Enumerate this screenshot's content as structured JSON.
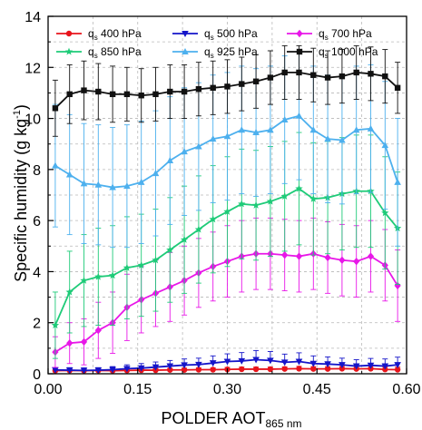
{
  "chart_data": {
    "type": "line",
    "xlabel_main": "POLDER AOT",
    "xlabel_sub": "865 nm",
    "ylabel_main": "Specific humidity (g kg",
    "ylabel_sup": "-1",
    "ylabel_close": ")",
    "xlim": [
      0,
      0.6
    ],
    "ylim": [
      0,
      14
    ],
    "xticks": [
      "0.00",
      "0.15",
      "0.30",
      "0.45",
      "0.60"
    ],
    "yticks": [
      "0",
      "2",
      "4",
      "6",
      "8",
      "10",
      "12",
      "14"
    ],
    "grid": true,
    "legend_position": "top",
    "x": [
      0.012,
      0.036,
      0.06,
      0.084,
      0.108,
      0.132,
      0.156,
      0.18,
      0.204,
      0.228,
      0.252,
      0.276,
      0.3,
      0.324,
      0.348,
      0.372,
      0.396,
      0.42,
      0.444,
      0.468,
      0.492,
      0.516,
      0.54,
      0.564,
      0.585
    ],
    "series": [
      {
        "name_main": "q",
        "name_sub": "s",
        "name_rest": " 400 hPa",
        "color": "#e8141b",
        "marker": "circle",
        "values": [
          0.12,
          0.13,
          0.12,
          0.13,
          0.12,
          0.13,
          0.14,
          0.14,
          0.15,
          0.15,
          0.16,
          0.16,
          0.17,
          0.18,
          0.18,
          0.18,
          0.19,
          0.2,
          0.19,
          0.19,
          0.2,
          0.19,
          0.2,
          0.17,
          0.16
        ],
        "errors": [
          0.05,
          0.05,
          0.05,
          0.05,
          0.05,
          0.06,
          0.06,
          0.06,
          0.06,
          0.07,
          0.07,
          0.07,
          0.08,
          0.08,
          0.08,
          0.08,
          0.08,
          0.09,
          0.09,
          0.09,
          0.09,
          0.09,
          0.1,
          0.1,
          0.1
        ]
      },
      {
        "name_main": "q",
        "name_sub": "s",
        "name_rest": " 500 hPa",
        "color": "#1515c9",
        "marker": "triangle-down",
        "values": [
          0.15,
          0.14,
          0.13,
          0.14,
          0.16,
          0.2,
          0.22,
          0.26,
          0.3,
          0.34,
          0.36,
          0.42,
          0.48,
          0.5,
          0.55,
          0.52,
          0.45,
          0.48,
          0.4,
          0.38,
          0.35,
          0.3,
          0.33,
          0.3,
          0.35
        ],
        "errors": [
          0.1,
          0.1,
          0.1,
          0.1,
          0.12,
          0.15,
          0.18,
          0.2,
          0.22,
          0.24,
          0.25,
          0.28,
          0.3,
          0.33,
          0.36,
          0.35,
          0.32,
          0.34,
          0.3,
          0.28,
          0.26,
          0.25,
          0.27,
          0.28,
          0.3
        ]
      },
      {
        "name_main": "q",
        "name_sub": "s",
        "name_rest": " 700 hPa",
        "color": "#e817e8",
        "marker": "diamond",
        "values": [
          0.85,
          1.2,
          1.25,
          1.7,
          2.0,
          2.6,
          2.9,
          3.15,
          3.4,
          3.65,
          3.95,
          4.2,
          4.4,
          4.6,
          4.7,
          4.7,
          4.65,
          4.6,
          4.7,
          4.55,
          4.45,
          4.4,
          4.6,
          4.25,
          3.45
        ],
        "errors": [
          0.6,
          0.8,
          0.9,
          1.1,
          1.2,
          1.3,
          1.3,
          1.3,
          1.35,
          1.35,
          1.35,
          1.35,
          1.4,
          1.4,
          1.4,
          1.4,
          1.4,
          1.4,
          1.4,
          1.4,
          1.4,
          1.4,
          1.4,
          1.4,
          1.4
        ]
      },
      {
        "name_main": "q",
        "name_sub": "s",
        "name_rest": " 850 hPa",
        "color": "#1ecb78",
        "marker": "star",
        "values": [
          1.9,
          3.2,
          3.65,
          3.8,
          3.85,
          4.15,
          4.25,
          4.45,
          4.85,
          5.25,
          5.65,
          6.05,
          6.35,
          6.65,
          6.6,
          6.75,
          6.95,
          7.25,
          6.85,
          6.9,
          7.05,
          7.15,
          7.15,
          6.3,
          5.7
        ],
        "errors": [
          1.3,
          1.6,
          1.8,
          1.9,
          1.95,
          2.0,
          2.0,
          2.0,
          2.05,
          2.1,
          2.1,
          2.1,
          2.15,
          2.15,
          2.15,
          2.15,
          2.15,
          2.2,
          2.2,
          2.2,
          2.2,
          2.2,
          2.2,
          2.2,
          2.2
        ]
      },
      {
        "name_main": "q",
        "name_sub": "s",
        "name_rest": " 925 hPa",
        "color": "#4db0ee",
        "marker": "triangle-up",
        "values": [
          8.15,
          7.8,
          7.45,
          7.4,
          7.3,
          7.35,
          7.5,
          7.85,
          8.35,
          8.7,
          8.9,
          9.2,
          9.3,
          9.55,
          9.45,
          9.55,
          9.95,
          10.1,
          9.55,
          9.2,
          9.15,
          9.55,
          9.6,
          8.95,
          7.5
        ],
        "errors": [
          2.4,
          2.35,
          2.35,
          2.35,
          2.35,
          2.4,
          2.4,
          2.45,
          2.5,
          2.5,
          2.5,
          2.5,
          2.5,
          2.5,
          2.5,
          2.5,
          2.5,
          2.5,
          2.5,
          2.5,
          2.5,
          2.5,
          2.5,
          2.5,
          2.5
        ]
      },
      {
        "name_main": "q",
        "name_sub": "s",
        "name_rest": " 1000 hPa",
        "color": "#111111",
        "marker": "square",
        "values": [
          10.4,
          10.95,
          11.1,
          11.05,
          10.95,
          10.95,
          10.9,
          10.95,
          11.05,
          11.05,
          11.15,
          11.2,
          11.25,
          11.35,
          11.45,
          11.6,
          11.8,
          11.8,
          11.7,
          11.6,
          11.65,
          11.8,
          11.75,
          11.65,
          11.2
        ],
        "errors": [
          1.1,
          1.15,
          1.15,
          1.1,
          1.1,
          1.05,
          1.05,
          1.05,
          1.05,
          1.05,
          1.05,
          1.05,
          1.05,
          1.05,
          1.05,
          1.05,
          1.05,
          1.05,
          1.05,
          1.05,
          1.05,
          1.05,
          1.05,
          1.05,
          1.0
        ]
      }
    ]
  }
}
